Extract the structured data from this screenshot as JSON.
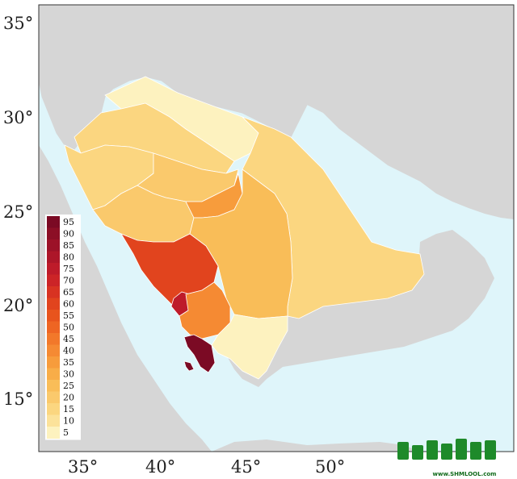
{
  "axes": {
    "x_ticks": [
      "35°",
      "40°",
      "45°",
      "50°"
    ],
    "y_ticks": [
      "35°",
      "30°",
      "25°",
      "20°",
      "15°"
    ]
  },
  "legend": {
    "labels": [
      "95",
      "90",
      "85",
      "80",
      "75",
      "70",
      "65",
      "60",
      "55",
      "50",
      "45",
      "40",
      "35",
      "30",
      "25",
      "20",
      "15",
      "10",
      "5"
    ],
    "colors": [
      "#7b0a24",
      "#8c0f26",
      "#9c1228",
      "#ad1629",
      "#be1b2a",
      "#cc2427",
      "#d83322",
      "#e1441e",
      "#e8541d",
      "#ee6523",
      "#f2782a",
      "#f58a33",
      "#f79c3c",
      "#f8ad48",
      "#f9bd58",
      "#fac96c",
      "#fbd680",
      "#fce29a",
      "#fdf2bf"
    ]
  },
  "colors": {
    "sea": "#dff5fa",
    "land": "#d6d6d6",
    "border": "#ffffff"
  },
  "logo": {
    "text": "www.SHMLOOL.com",
    "mark": "shmlool-logo"
  }
}
